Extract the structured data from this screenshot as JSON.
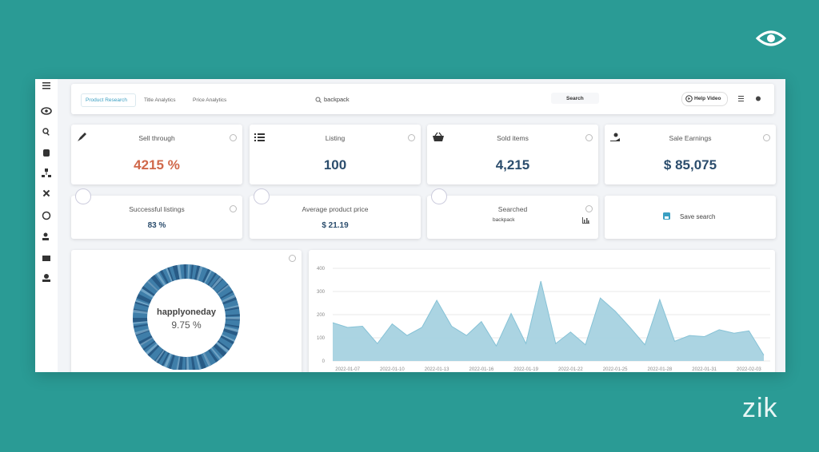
{
  "brand": "zik",
  "tabs": [
    "Product Research",
    "Title Analytics",
    "Price Analytics"
  ],
  "search": {
    "query": "backpack",
    "button": "Search"
  },
  "help_button": "Help Video",
  "cards": [
    {
      "label": "Sell through",
      "value": "4215 %"
    },
    {
      "label": "Listing",
      "value": "100"
    },
    {
      "label": "Sold items",
      "value": "4,215"
    },
    {
      "label": "Sale Earnings",
      "value": "$ 85,075"
    }
  ],
  "stats": [
    {
      "label": "Successful listings",
      "value": "83 %"
    },
    {
      "label": "Average product price",
      "value": "$ 21.19"
    },
    {
      "label": "Searched",
      "value": "backpack"
    },
    {
      "label": "Save search"
    }
  ],
  "donut": {
    "label": "happlyoneday",
    "value": "9.75 %"
  },
  "chart_data": {
    "type": "area",
    "color": "#a6d2e0",
    "x": [
      "2022-01-06",
      "2022-01-07",
      "2022-01-08",
      "2022-01-09",
      "2022-01-10",
      "2022-01-11",
      "2022-01-12",
      "2022-01-13",
      "2022-01-14",
      "2022-01-15",
      "2022-01-16",
      "2022-01-17",
      "2022-01-18",
      "2022-01-19",
      "2022-01-20",
      "2022-01-21",
      "2022-01-22",
      "2022-01-23",
      "2022-01-24",
      "2022-01-25",
      "2022-01-26",
      "2022-01-27",
      "2022-01-28",
      "2022-01-29",
      "2022-01-30",
      "2022-01-31",
      "2022-02-01",
      "2022-02-02",
      "2022-02-03",
      "2022-02-04"
    ],
    "values": [
      165,
      145,
      150,
      75,
      160,
      110,
      145,
      262,
      150,
      110,
      170,
      65,
      205,
      75,
      345,
      75,
      125,
      70,
      272,
      215,
      145,
      70,
      265,
      85,
      110,
      105,
      135,
      120,
      130,
      25
    ],
    "xticks": [
      "2022-01-07",
      "2022-01-10",
      "2022-01-13",
      "2022-01-16",
      "2022-01-19",
      "2022-01-22",
      "2022-01-25",
      "2022-01-28",
      "2022-01-31",
      "2022-02-03"
    ],
    "ylim": [
      0,
      400
    ],
    "yticks": [
      0,
      100,
      200,
      300,
      400
    ],
    "grid": true
  }
}
